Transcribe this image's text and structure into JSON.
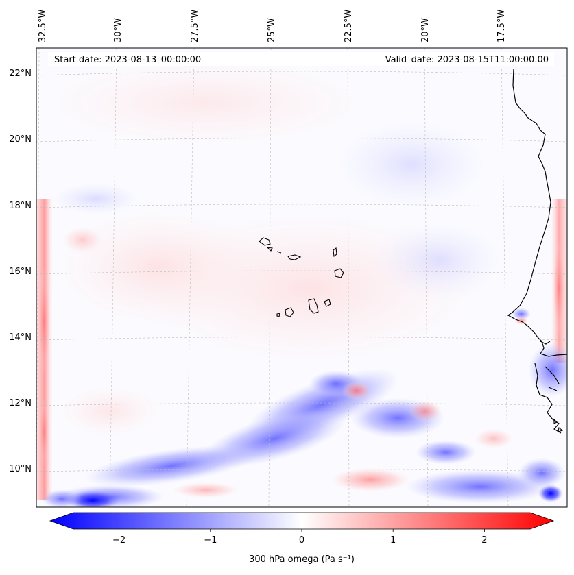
{
  "map": {
    "start_date_label": "Start date: 2023-08-13_00:00:00",
    "valid_date_label": "Valid_date: 2023-08-15T11:00:00.00",
    "lon_labels": [
      "32.5°W",
      "30°W",
      "27.5°W",
      "25°W",
      "22.5°W",
      "20°W",
      "17.5°W"
    ],
    "lat_labels": [
      "22°N",
      "20°N",
      "18°N",
      "16°N",
      "14°N",
      "12°N",
      "10°N"
    ],
    "lon_range": [
      -33.0,
      -15.5
    ],
    "lat_range": [
      8.9,
      22.8
    ]
  },
  "colorbar": {
    "label": "300 hPa omega (Pa s⁻¹)",
    "ticks": [
      "−2",
      "−1",
      "0",
      "1",
      "2"
    ],
    "tick_values": [
      -2,
      -1,
      0,
      1,
      2
    ],
    "range": [
      -2.5,
      2.5
    ],
    "colors": {
      "negative": "#0000ff",
      "zero": "#ffffff",
      "positive": "#ff0000"
    }
  },
  "colors": {
    "coastline": "#000000",
    "gridline": "#bbbbbb"
  }
}
